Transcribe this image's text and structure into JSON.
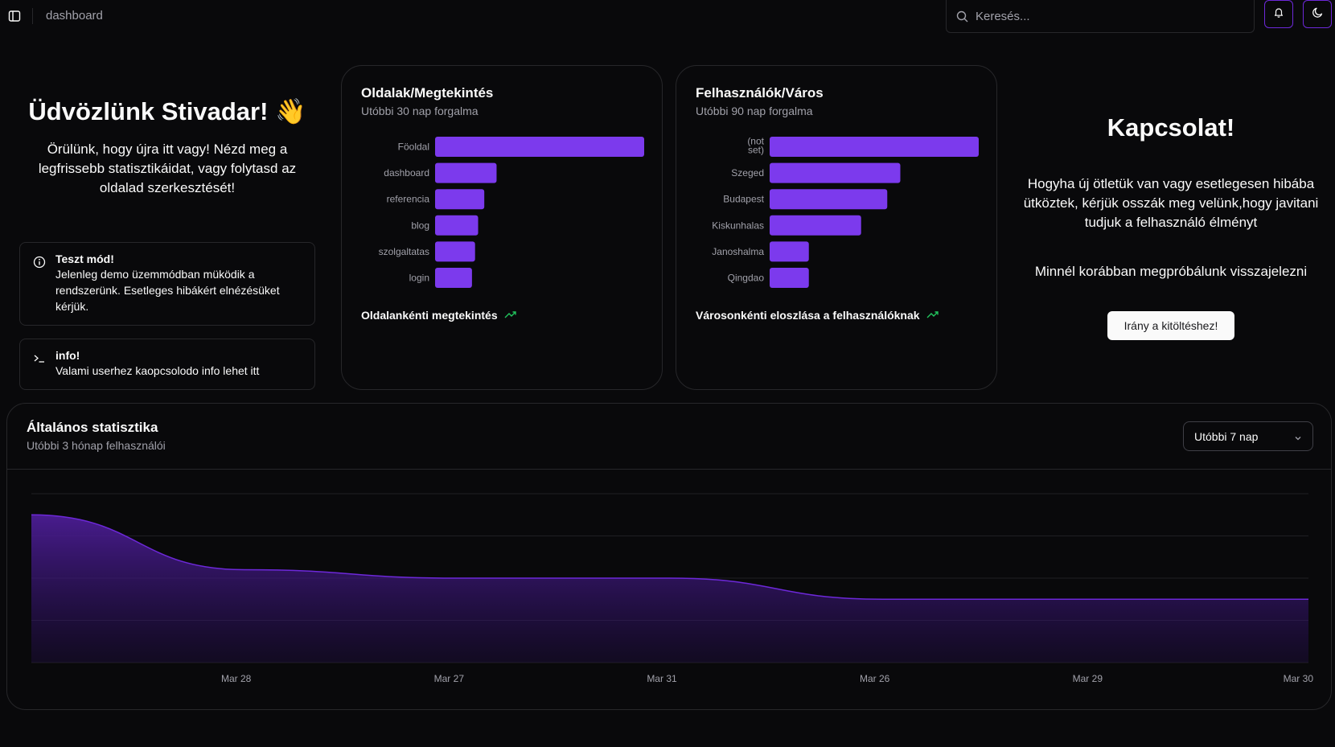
{
  "topbar": {
    "breadcrumb": "dashboard",
    "search_placeholder": "Keresés..."
  },
  "welcome": {
    "title": "Üdvözlünk Stivadar! 👋",
    "subtitle": "Örülünk, hogy újra itt vagy! Nézd meg a legfrissebb statisztikáidat, vagy folytasd az oldalad szerkesztését!"
  },
  "alerts": [
    {
      "title": "Teszt mód!",
      "text": "Jelenleg demo üzemmódban müködik a rendszerünk. Esetleges hibákért elnézésüket kérjük."
    },
    {
      "title": "info!",
      "text": "Valami userhez kaopcsolodo info lehet itt"
    }
  ],
  "pages_card": {
    "title": "Oldalak/Megtekintés",
    "description": "Utóbbi 30 nap forgalma",
    "footer": "Oldalankénti megtekintés"
  },
  "cities_card": {
    "title": "Felhasználók/Város",
    "description": "Utóbbi 90 nap forgalma",
    "footer": "Városonkénti eloszlása a felhasználóknak"
  },
  "contact": {
    "title": "Kapcsolat!",
    "text": "Hogyha új ötletük van vagy esetlegesen hibába ütköztek, kérjük osszák meg velünk,hogy javitani tudjuk a felhasználó élményt",
    "text2": "Minnél korábban megpróbálunk visszajelezni",
    "button": "Irány a kitöltéshez!"
  },
  "stats": {
    "title": "Általános statisztika",
    "description": "Utóbbi 3 hónap felhasználói",
    "range": "Utóbbi 7 nap"
  },
  "colors": {
    "accent": "#7c3aed",
    "trend": "#22c55e"
  },
  "chart_data": [
    {
      "type": "bar",
      "orientation": "horizontal",
      "categories": [
        "Föoldal",
        "dashboard",
        "referencia",
        "blog",
        "szolgaltatas",
        "login"
      ],
      "values": [
        34,
        10,
        8,
        7,
        6.5,
        6
      ],
      "xlim": [
        0,
        34
      ]
    },
    {
      "type": "bar",
      "orientation": "horizontal",
      "categories": [
        "(not set)",
        "Szeged",
        "Budapest",
        "Kiskunhalas",
        "Janoshalma",
        "Qingdao"
      ],
      "values": [
        40,
        25,
        22.5,
        17.5,
        7.5,
        7.5
      ],
      "xlim": [
        0,
        40
      ]
    },
    {
      "type": "area",
      "x": [
        "",
        "Mar 28",
        "Mar 27",
        "Mar 31",
        "Mar 26",
        "Mar 29",
        "Mar 30"
      ],
      "y": [
        35,
        22,
        20,
        20,
        15,
        15,
        15
      ],
      "ylim": [
        0,
        40
      ],
      "grid": true
    }
  ]
}
